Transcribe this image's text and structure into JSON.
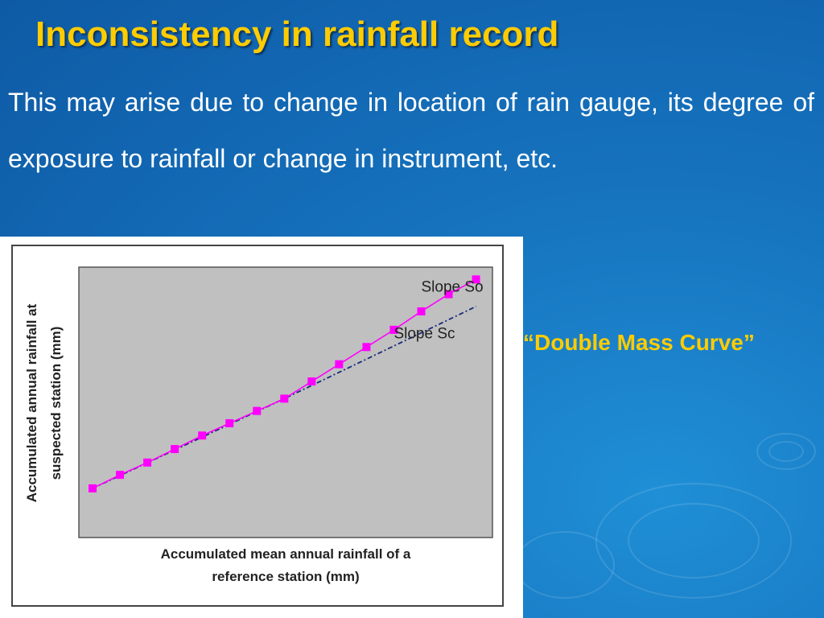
{
  "slide": {
    "title": "Inconsistency in rainfall record",
    "body": "This may arise due to change in location of rain gauge, its degree of exposure to rainfall or change in instrument, etc.",
    "caption": "“Double Mass Curve”"
  },
  "colors": {
    "title": "#ffcc00",
    "caption": "#ffcc00",
    "plot_background": "#c0c0c0",
    "series_observed": "#ff00ff",
    "series_corrected": "#1a2a7a"
  },
  "chart_data": {
    "type": "line",
    "xlabel": "Accumulated mean annual rainfall of a reference station (mm)",
    "ylabel": "Accumulated annual rainfall at suspected station (mm)",
    "grid": false,
    "series": [
      {
        "name": "Slope So",
        "style": "solid-with-square-markers",
        "x": [
          1,
          2,
          3,
          4,
          5,
          6,
          7,
          8,
          9,
          10,
          11,
          12,
          13,
          14,
          15
        ],
        "y": [
          1.0,
          1.55,
          2.05,
          2.6,
          3.15,
          3.65,
          4.15,
          4.65,
          5.35,
          6.05,
          6.75,
          7.45,
          8.2,
          8.9,
          9.5
        ]
      },
      {
        "name": "Slope Sc",
        "style": "dash-dot",
        "x": [
          1,
          8,
          15
        ],
        "y": [
          1.0,
          4.65,
          8.4
        ]
      }
    ],
    "xlim": [
      0.5,
      15.6
    ],
    "ylim": [
      -1.0,
      10.0
    ],
    "annotations": [
      {
        "text": "Slope So",
        "x": 13.0,
        "y": 9.0
      },
      {
        "text": "Slope Sc",
        "x": 12.0,
        "y": 7.1
      }
    ]
  }
}
